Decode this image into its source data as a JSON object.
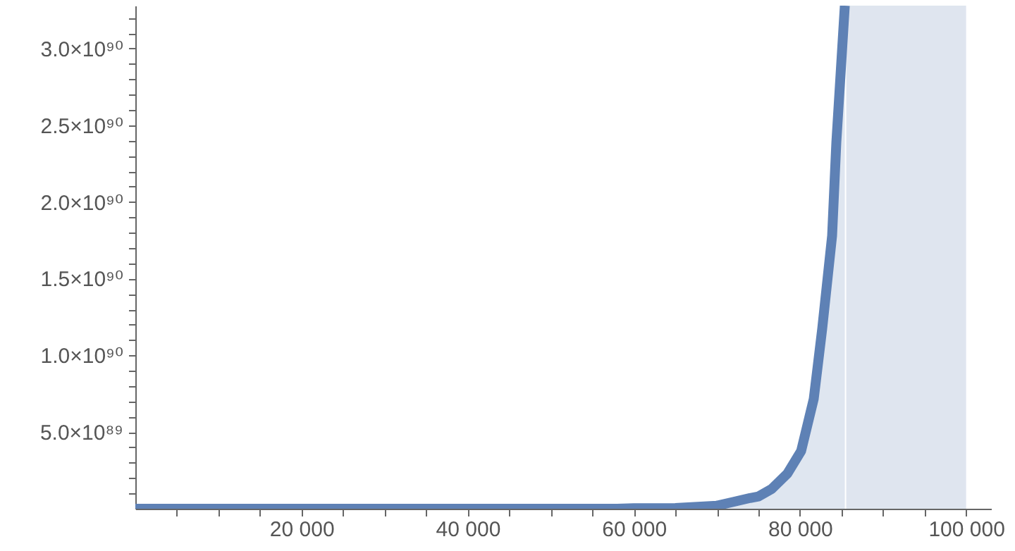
{
  "chart_data": {
    "type": "area",
    "xlim": [
      0,
      103000
    ],
    "ylim": [
      0,
      3.28e+90
    ],
    "xticks": [
      {
        "value": 5000,
        "label": null
      },
      {
        "value": 10000,
        "label": null
      },
      {
        "value": 15000,
        "label": null
      },
      {
        "value": 20000,
        "label": "20 000"
      },
      {
        "value": 25000,
        "label": null
      },
      {
        "value": 30000,
        "label": null
      },
      {
        "value": 35000,
        "label": null
      },
      {
        "value": 40000,
        "label": "40 000"
      },
      {
        "value": 45000,
        "label": null
      },
      {
        "value": 50000,
        "label": null
      },
      {
        "value": 55000,
        "label": null
      },
      {
        "value": 60000,
        "label": "60 000"
      },
      {
        "value": 65000,
        "label": null
      },
      {
        "value": 70000,
        "label": null
      },
      {
        "value": 75000,
        "label": null
      },
      {
        "value": 80000,
        "label": "80 000"
      },
      {
        "value": 85000,
        "label": null
      },
      {
        "value": 90000,
        "label": null
      },
      {
        "value": 95000,
        "label": null
      },
      {
        "value": 100000,
        "label": "100 000"
      }
    ],
    "yticks": [
      {
        "value": 1e+89,
        "label": null
      },
      {
        "value": 2e+89,
        "label": null
      },
      {
        "value": 3e+89,
        "label": null
      },
      {
        "value": 4e+89,
        "label": null
      },
      {
        "value": 5e+89,
        "label": "5.0×10⁸⁹"
      },
      {
        "value": 6e+89,
        "label": null
      },
      {
        "value": 7e+89,
        "label": null
      },
      {
        "value": 8e+89,
        "label": null
      },
      {
        "value": 9e+89,
        "label": null
      },
      {
        "value": 1e+90,
        "label": "1.0×10⁹⁰"
      },
      {
        "value": 1.1e+90,
        "label": null
      },
      {
        "value": 1.2e+90,
        "label": null
      },
      {
        "value": 1.3e+90,
        "label": null
      },
      {
        "value": 1.4e+90,
        "label": null
      },
      {
        "value": 1.5e+90,
        "label": "1.5×10⁹⁰"
      },
      {
        "value": 1.6e+90,
        "label": null
      },
      {
        "value": 1.7e+90,
        "label": null
      },
      {
        "value": 1.8e+90,
        "label": null
      },
      {
        "value": 1.9e+90,
        "label": null
      },
      {
        "value": 2e+90,
        "label": "2.0×10⁹⁰"
      },
      {
        "value": 2.1e+90,
        "label": null
      },
      {
        "value": 2.2e+90,
        "label": null
      },
      {
        "value": 2.3e+90,
        "label": null
      },
      {
        "value": 2.4e+90,
        "label": null
      },
      {
        "value": 2.5e+90,
        "label": "2.5×10⁹⁰"
      },
      {
        "value": 2.6e+90,
        "label": null
      },
      {
        "value": 2.7e+90,
        "label": null
      },
      {
        "value": 2.8e+90,
        "label": null
      },
      {
        "value": 2.9e+90,
        "label": null
      },
      {
        "value": 3e+90,
        "label": "3.0×10⁹⁰"
      },
      {
        "value": 3.1e+90,
        "label": null
      },
      {
        "value": 3.2e+90,
        "label": null
      }
    ],
    "grid": false,
    "bands": [
      {
        "axis": "x",
        "from": 85570,
        "to": 100000,
        "color": "#dfe5ef"
      }
    ],
    "series": [
      {
        "color": "#5e81b5",
        "x": [
          0,
          20000,
          40000,
          50000,
          58000,
          60000,
          65000,
          70000,
          72000,
          74000,
          75000,
          76570,
          78500,
          80140,
          81660,
          82680,
          83870,
          84380,
          85400
        ],
        "values": [
          0,
          0,
          0,
          0,
          0,
          3e+87,
          5e+87,
          2e+88,
          4.5e+88,
          7e+88,
          8e+88,
          1.28e+89,
          2.3e+89,
          3.76e+89,
          7.16e+89,
          1.174e+90,
          1.78e+90,
          2.39e+90,
          3.28e+90
        ]
      }
    ]
  }
}
